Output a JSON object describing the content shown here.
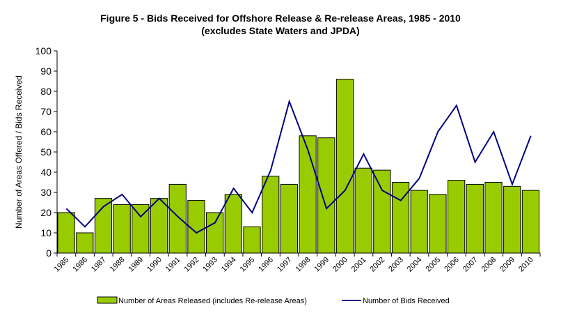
{
  "chart_data": {
    "type": "bar+line",
    "title": "Figure 5 - Bids Received for Offshore Release & Re-release Areas, 1985 - 2010",
    "subtitle": "(excludes State Waters and JPDA)",
    "xlabel": "",
    "ylabel": "Number of Areas Offered / Bids Received",
    "ylim": [
      0,
      100
    ],
    "yticks": [
      0,
      10,
      20,
      30,
      40,
      50,
      60,
      70,
      80,
      90,
      100
    ],
    "grid": false,
    "legend": "bottom",
    "categories": [
      "1985",
      "1986",
      "1987",
      "1988",
      "1989",
      "1990",
      "1991",
      "1992",
      "1993",
      "1994",
      "1995",
      "1996",
      "1997",
      "1998",
      "1999",
      "2000",
      "2001",
      "2002",
      "2003",
      "2004",
      "2005",
      "2006",
      "2007",
      "2008",
      "2009",
      "2010"
    ],
    "series": [
      {
        "name": "Number of Areas Released (includes Re-release Areas)",
        "type": "bar",
        "color": "#99CC00",
        "values": [
          20,
          10,
          27,
          24,
          24,
          27,
          34,
          26,
          20,
          29,
          13,
          38,
          34,
          58,
          57,
          86,
          42,
          41,
          35,
          31,
          29,
          36,
          34,
          35,
          33,
          31
        ]
      },
      {
        "name": "Number of Bids Received",
        "type": "line",
        "color": "#000080",
        "values": [
          22,
          13,
          23,
          29,
          18,
          27,
          18,
          10,
          15,
          32,
          20,
          41,
          75,
          51,
          22,
          31,
          49,
          31,
          26,
          37,
          60,
          73,
          45,
          60,
          34,
          58
        ]
      }
    ]
  }
}
